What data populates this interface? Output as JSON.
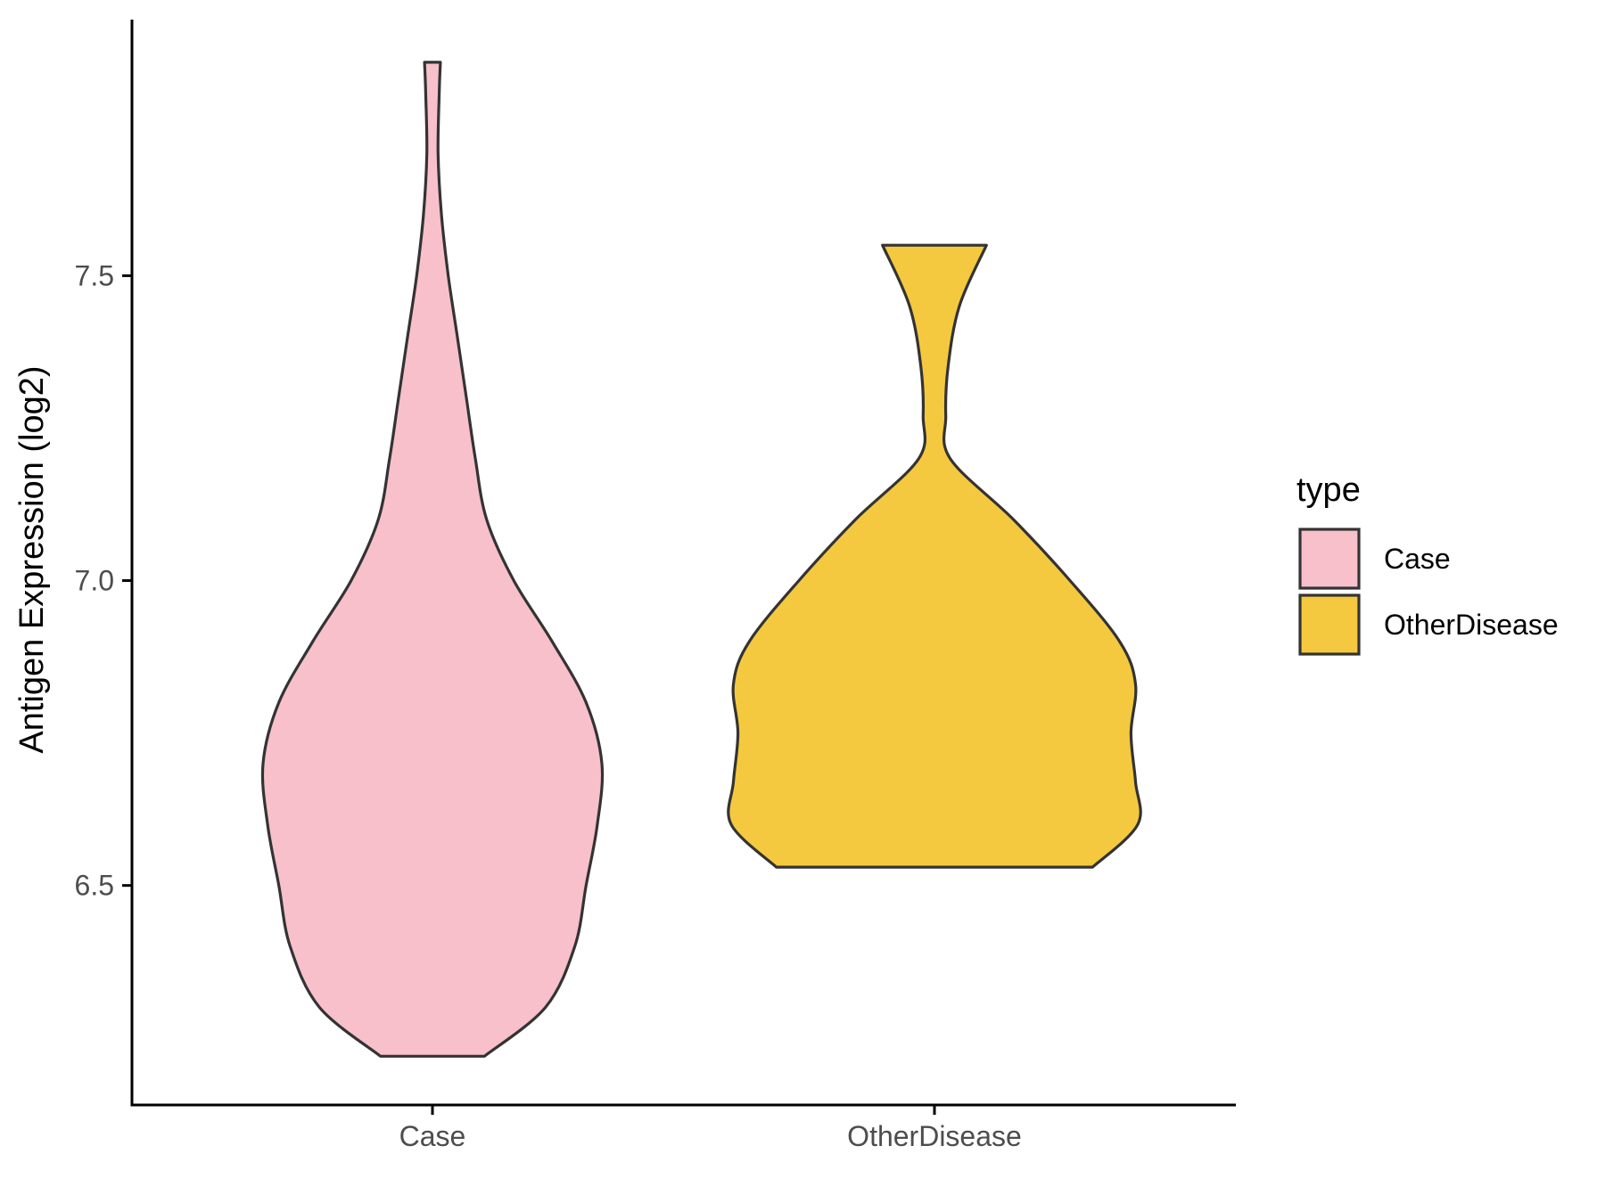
{
  "chart_data": {
    "type": "violin",
    "title": "",
    "xlabel": "",
    "ylabel": "Antigen Expression (log2)",
    "ylim": [
      6.14,
      7.92
    ],
    "yticks": [
      6.5,
      7.0,
      7.5
    ],
    "ytick_labels": [
      "6.5",
      "7.0",
      "7.5"
    ],
    "categories": [
      "Case",
      "OtherDisease"
    ],
    "grid": false,
    "legend": {
      "title": "type",
      "placement": "right",
      "entries": [
        {
          "label": "Case",
          "color": "#F7C0CB"
        },
        {
          "label": "OtherDisease",
          "color": "#F5C93F"
        }
      ]
    },
    "series": [
      {
        "name": "Case",
        "color": "#F7C0CB",
        "min": 6.22,
        "max": 7.85,
        "density_profile": [
          {
            "y": 6.22,
            "w": 0.23
          },
          {
            "y": 6.3,
            "w": 0.5
          },
          {
            "y": 6.4,
            "w": 0.63
          },
          {
            "y": 6.5,
            "w": 0.68
          },
          {
            "y": 6.6,
            "w": 0.73
          },
          {
            "y": 6.7,
            "w": 0.75
          },
          {
            "y": 6.8,
            "w": 0.68
          },
          {
            "y": 6.9,
            "w": 0.53
          },
          {
            "y": 7.0,
            "w": 0.36
          },
          {
            "y": 7.1,
            "w": 0.24
          },
          {
            "y": 7.2,
            "w": 0.19
          },
          {
            "y": 7.3,
            "w": 0.15
          },
          {
            "y": 7.4,
            "w": 0.11
          },
          {
            "y": 7.5,
            "w": 0.07
          },
          {
            "y": 7.6,
            "w": 0.04
          },
          {
            "y": 7.7,
            "w": 0.025
          },
          {
            "y": 7.8,
            "w": 0.03
          },
          {
            "y": 7.85,
            "w": 0.035
          }
        ]
      },
      {
        "name": "OtherDisease",
        "color": "#F5C93F",
        "min": 6.53,
        "max": 7.55,
        "density_profile": [
          {
            "y": 6.53,
            "w": 0.7
          },
          {
            "y": 6.6,
            "w": 0.9
          },
          {
            "y": 6.67,
            "w": 0.89
          },
          {
            "y": 6.75,
            "w": 0.87
          },
          {
            "y": 6.83,
            "w": 0.89
          },
          {
            "y": 6.9,
            "w": 0.82
          },
          {
            "y": 7.0,
            "w": 0.6
          },
          {
            "y": 7.1,
            "w": 0.35
          },
          {
            "y": 7.2,
            "w": 0.07
          },
          {
            "y": 7.27,
            "w": 0.05
          },
          {
            "y": 7.35,
            "w": 0.06
          },
          {
            "y": 7.45,
            "w": 0.11
          },
          {
            "y": 7.55,
            "w": 0.23
          }
        ]
      }
    ]
  }
}
